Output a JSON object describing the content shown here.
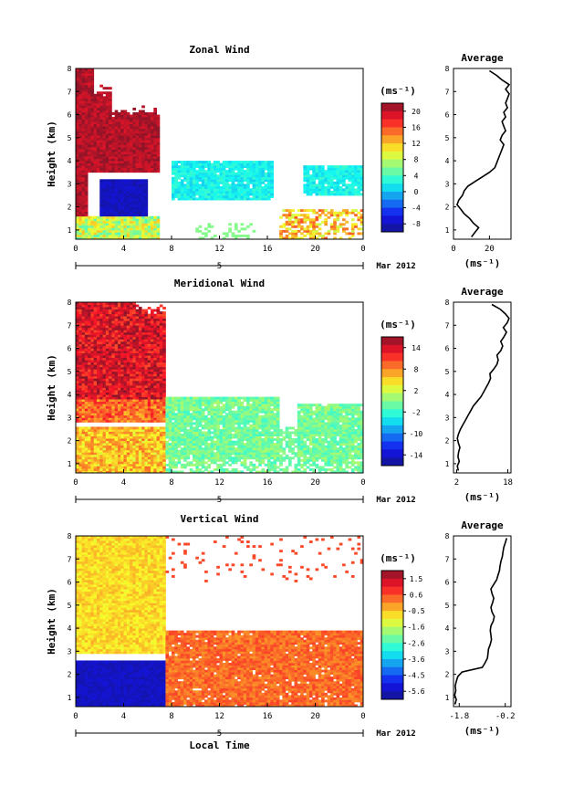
{
  "chart_data": [
    {
      "type": "heatmap",
      "title": "Zonal Wind",
      "xlabel": "",
      "ylabel": "Height (km)",
      "x_ticks": [
        "0",
        "4",
        "8",
        "12",
        "16",
        "20",
        "0"
      ],
      "y_ticks": [
        "1",
        "2",
        "3",
        "4",
        "5",
        "6",
        "7",
        "8"
      ],
      "date_axis": {
        "tick": "5",
        "label": "Mar 2012"
      },
      "colorbar": {
        "unit": "(ms⁻¹)",
        "ticks": [
          "20",
          "16",
          "12",
          "8",
          "4",
          "0",
          "-4",
          "-8"
        ],
        "range": [
          -10,
          22
        ]
      },
      "profile": {
        "title": "Average",
        "xlabel": "(ms⁻¹)",
        "x_ticks": [
          "0",
          "20"
        ],
        "y_ticks": [
          "1",
          "2",
          "3",
          "4",
          "5",
          "6",
          "7",
          "8"
        ],
        "xlim": [
          0,
          32
        ],
        "height": [
          0.7,
          0.9,
          1.1,
          1.3,
          1.5,
          1.7,
          1.9,
          2.1,
          2.3,
          2.5,
          2.7,
          2.9,
          3.1,
          3.3,
          3.5,
          3.7,
          3.9,
          4.1,
          4.3,
          4.5,
          4.7,
          4.9,
          5.1,
          5.3,
          5.5,
          5.7,
          5.9,
          6.1,
          6.3,
          6.5,
          6.7,
          6.9,
          7.1,
          7.3,
          7.5,
          7.7,
          7.9
        ],
        "value": [
          10,
          12,
          14,
          11,
          9,
          6,
          4,
          2,
          3,
          5,
          6,
          8,
          12,
          16,
          20,
          23,
          24,
          25,
          26,
          27,
          28,
          26,
          27,
          29,
          28,
          27,
          29,
          28,
          30,
          29,
          30,
          31,
          29,
          31,
          27,
          24,
          20
        ]
      }
    },
    {
      "type": "heatmap",
      "title": "Meridional Wind",
      "xlabel": "",
      "ylabel": "Height (km)",
      "x_ticks": [
        "0",
        "4",
        "8",
        "12",
        "16",
        "20",
        "0"
      ],
      "y_ticks": [
        "1",
        "2",
        "3",
        "4",
        "5",
        "6",
        "7",
        "8"
      ],
      "date_axis": {
        "tick": "5",
        "label": "Mar 2012"
      },
      "colorbar": {
        "unit": "(ms⁻¹)",
        "ticks": [
          "14",
          "8",
          "2",
          "-2",
          "-10",
          "-14"
        ],
        "range": [
          -16,
          16
        ]
      },
      "profile": {
        "title": "Average",
        "xlabel": "(ms⁻¹)",
        "x_ticks": [
          "2",
          "18"
        ],
        "y_ticks": [
          "1",
          "2",
          "3",
          "4",
          "5",
          "6",
          "7",
          "8"
        ],
        "xlim": [
          1,
          19
        ],
        "height": [
          0.7,
          0.9,
          1.1,
          1.3,
          1.5,
          1.7,
          1.9,
          2.1,
          2.3,
          2.5,
          2.7,
          2.9,
          3.1,
          3.3,
          3.5,
          3.7,
          3.9,
          4.1,
          4.3,
          4.5,
          4.7,
          4.9,
          5.1,
          5.3,
          5.5,
          5.7,
          5.9,
          6.1,
          6.3,
          6.5,
          6.7,
          6.9,
          7.1,
          7.3,
          7.5,
          7.7,
          7.9
        ],
        "value": [
          2.5,
          2.2,
          2.8,
          2.4,
          2.6,
          3.0,
          2.5,
          2.2,
          2.6,
          3.2,
          4.0,
          4.8,
          5.6,
          6.4,
          7.2,
          8.4,
          9.6,
          10.4,
          11.2,
          12.0,
          12.6,
          12.4,
          13.6,
          14.6,
          15.0,
          14.6,
          15.8,
          16.4,
          15.8,
          16.8,
          17.6,
          16.6,
          17.8,
          18.4,
          17.2,
          15.6,
          13.0
        ]
      }
    },
    {
      "type": "heatmap",
      "title": "Vertical Wind",
      "xlabel": "Local Time",
      "ylabel": "Height (km)",
      "x_ticks": [
        "0",
        "4",
        "8",
        "12",
        "16",
        "20",
        "0"
      ],
      "y_ticks": [
        "1",
        "2",
        "3",
        "4",
        "5",
        "6",
        "7",
        "8"
      ],
      "date_axis": {
        "tick": "5",
        "label": "Mar 2012"
      },
      "colorbar": {
        "unit": "(ms⁻¹)",
        "ticks": [
          "1.5",
          "0.6",
          "-0.5",
          "-1.6",
          "-2.6",
          "-3.6",
          "-4.5",
          "-5.6"
        ],
        "range": [
          -6.2,
          2.0
        ]
      },
      "profile": {
        "title": "Average",
        "xlabel": "(ms⁻¹)",
        "x_ticks": [
          "-1.8",
          "-0.2"
        ],
        "y_ticks": [
          "1",
          "2",
          "3",
          "4",
          "5",
          "6",
          "7",
          "8"
        ],
        "xlim": [
          -2.0,
          0.0
        ],
        "height": [
          0.7,
          0.9,
          1.1,
          1.3,
          1.5,
          1.7,
          1.9,
          2.1,
          2.3,
          2.5,
          2.7,
          2.9,
          3.1,
          3.3,
          3.5,
          3.7,
          3.9,
          4.1,
          4.3,
          4.5,
          4.7,
          4.9,
          5.1,
          5.3,
          5.5,
          5.7,
          5.9,
          6.1,
          6.3,
          6.5,
          6.7,
          6.9,
          7.1,
          7.3,
          7.5,
          7.7,
          7.9
        ],
        "value": [
          -1.95,
          -1.9,
          -1.96,
          -1.92,
          -1.94,
          -1.9,
          -1.85,
          -1.7,
          -1.0,
          -0.9,
          -0.82,
          -0.8,
          -0.78,
          -0.72,
          -0.68,
          -0.7,
          -0.72,
          -0.7,
          -0.62,
          -0.58,
          -0.66,
          -0.7,
          -0.64,
          -0.6,
          -0.66,
          -0.7,
          -0.6,
          -0.5,
          -0.45,
          -0.4,
          -0.38,
          -0.35,
          -0.3,
          -0.28,
          -0.25,
          -0.2,
          -0.15
        ]
      }
    }
  ]
}
